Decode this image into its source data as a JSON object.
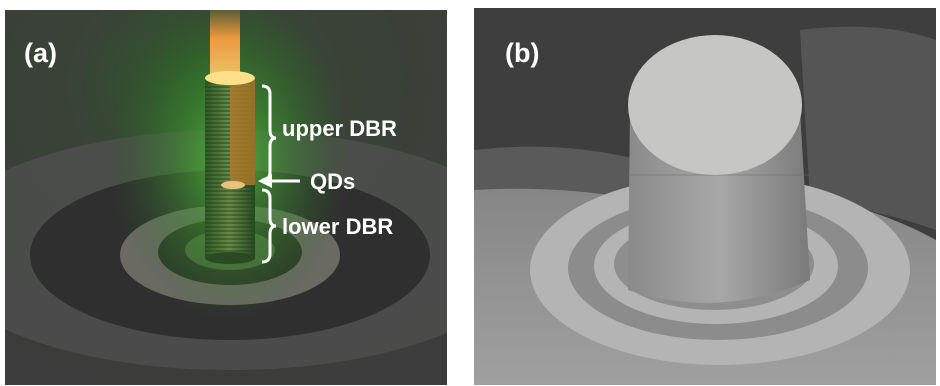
{
  "panels": [
    {
      "label": "(a)",
      "annotations": {
        "upper": "upper DBR",
        "qds": "QDs",
        "lower": "lower DBR"
      }
    },
    {
      "label": "(b)"
    }
  ]
}
